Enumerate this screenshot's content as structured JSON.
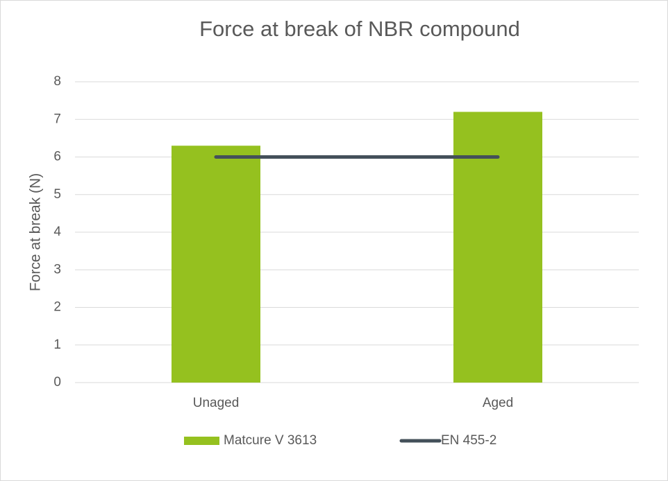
{
  "chart_data": {
    "type": "bar",
    "title": "Force at break of NBR compound",
    "y_label": "Force at break (N)",
    "categories": [
      "Unaged",
      "Aged"
    ],
    "series": [
      {
        "name": "Matcure V 3613",
        "color": "#95c11f",
        "values": [
          6.3,
          7.2
        ],
        "type": "bar"
      },
      {
        "name": "EN 455-2",
        "color": "#44505a",
        "values": [
          6,
          6
        ],
        "type": "line"
      }
    ],
    "ylim": [
      0,
      8
    ],
    "yticks": [
      0,
      1,
      2,
      3,
      4,
      5,
      6,
      7,
      8
    ],
    "grid": true,
    "legend": "bottom"
  }
}
